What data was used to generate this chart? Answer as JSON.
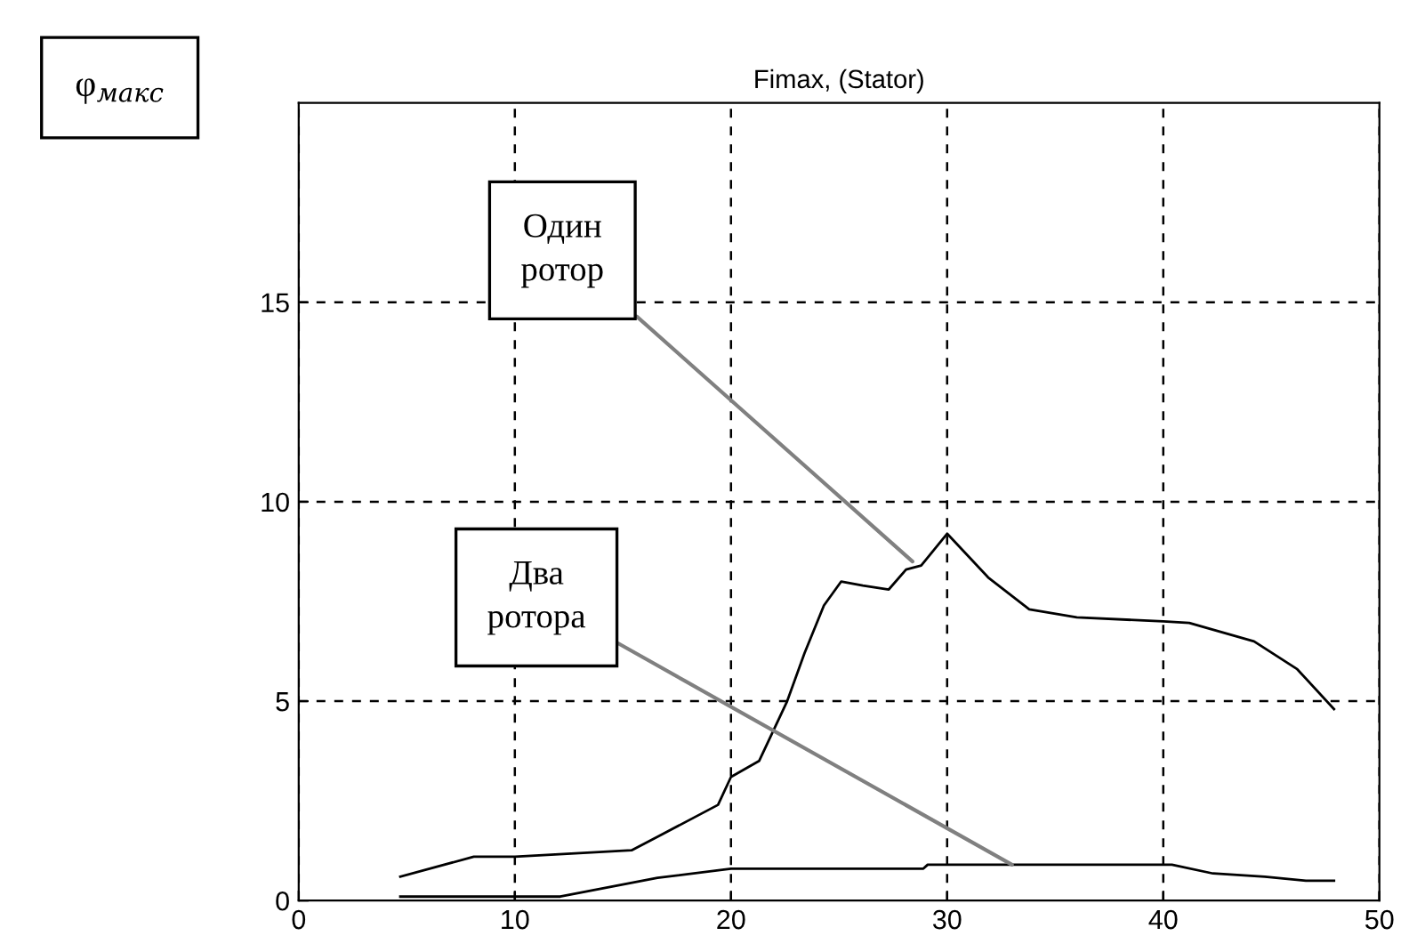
{
  "chart_data": {
    "type": "line",
    "title": "Fimax, (Stator)",
    "ylabel": "φ$_{макс}$",
    "xlim": [
      0,
      50
    ],
    "xticks": [
      0,
      10,
      20,
      30,
      40,
      50
    ],
    "ylim": [
      0,
      20
    ],
    "yticks": [
      0,
      5,
      10,
      15
    ],
    "grid": true,
    "line_style": "solid",
    "marker": "none",
    "series": [
      {
        "color": "#000000",
        "x": [
          4.7,
          8.1,
          10,
          15.4,
          16.6,
          19.4,
          20,
          21.3,
          22.6,
          23.4,
          24.3,
          25.1,
          26.1,
          27.3,
          28.1,
          28.8,
          30,
          31.9,
          33.8,
          36.0,
          40,
          41.2,
          44.2,
          46.2,
          47.9
        ],
        "values": [
          0.6,
          1.1,
          1.1,
          1.26,
          1.6,
          2.4,
          3.1,
          3.5,
          5.0,
          6.2,
          7.4,
          8.0,
          7.9,
          7.8,
          8.3,
          8.4,
          9.2,
          8.1,
          7.3,
          7.1,
          7.0,
          6.96,
          6.5,
          5.8,
          4.8
        ]
      },
      {
        "color": "#000000",
        "x": [
          4.7,
          12.1,
          16.6,
          20,
          28.9,
          29.1,
          40.4,
          42.3,
          44.7,
          46.6,
          47.9
        ],
        "values": [
          0.1,
          0.1,
          0.57,
          0.8,
          0.8,
          0.9,
          0.9,
          0.68,
          0.6,
          0.5,
          0.5
        ]
      }
    ],
    "annotations": [
      {
        "text": "Один\nротор",
        "x": 28.4,
        "y": 8.5
      },
      {
        "text": "Два\nротора",
        "x": 33,
        "y": 0.9
      }
    ]
  }
}
